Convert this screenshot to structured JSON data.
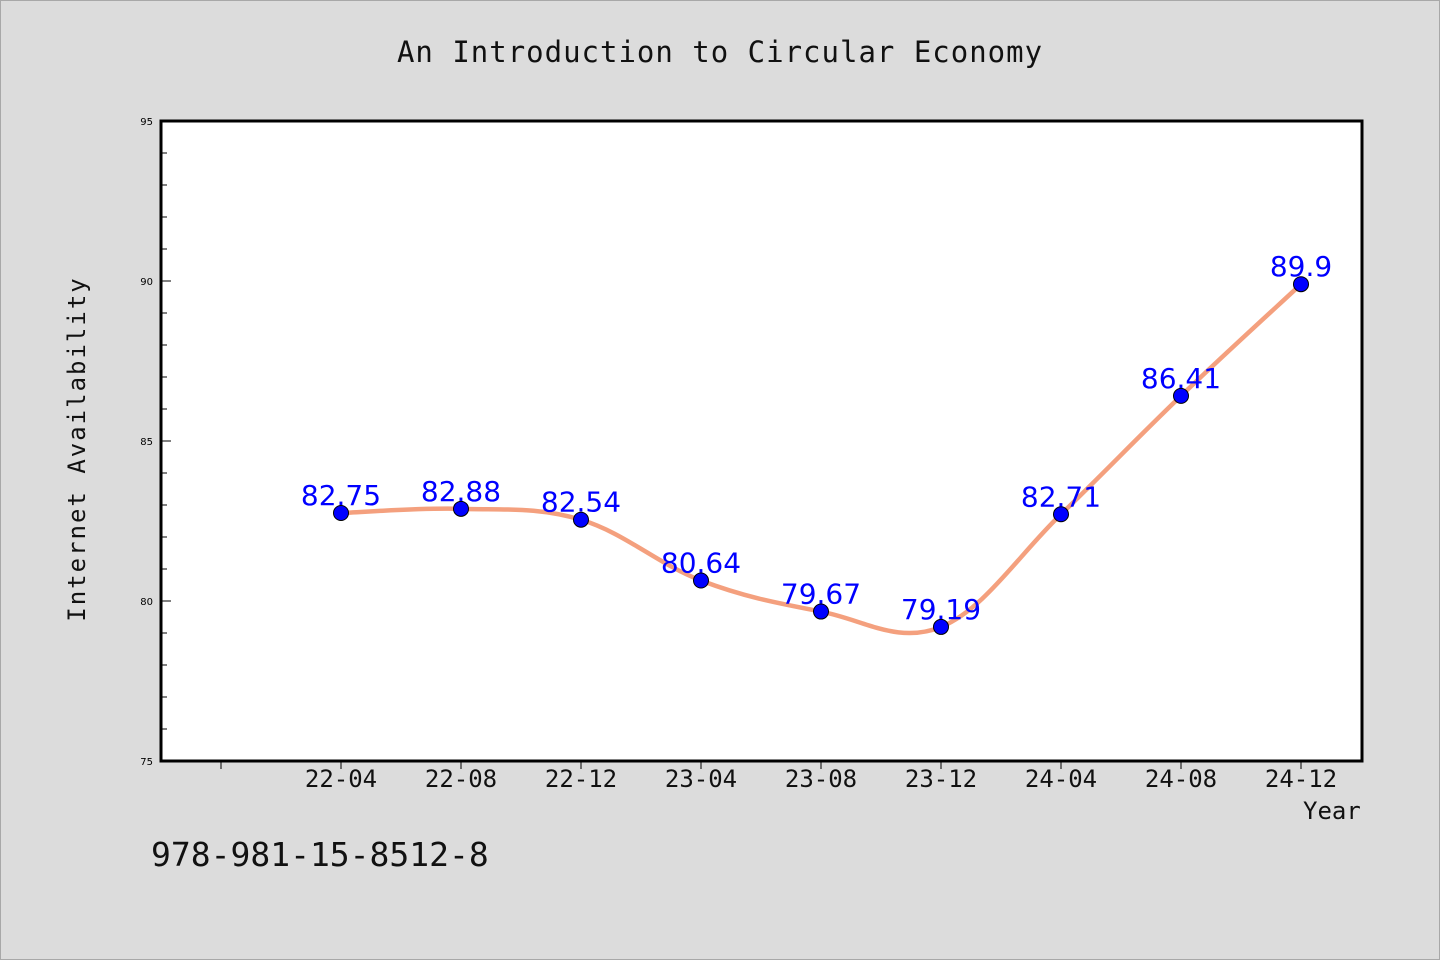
{
  "chart_data": {
    "type": "line",
    "title": "An Introduction to Circular Economy",
    "xlabel": "Year",
    "ylabel": "Internet Availability",
    "categories": [
      "22-04",
      "22-08",
      "22-12",
      "23-04",
      "23-08",
      "23-12",
      "24-04",
      "24-08",
      "24-12"
    ],
    "values": [
      82.75,
      82.88,
      82.54,
      80.64,
      79.67,
      79.19,
      82.71,
      86.41,
      89.9
    ],
    "data_labels": [
      "82.75",
      "82.88",
      "82.54",
      "80.64",
      "79.67",
      "79.19",
      "82.71",
      "86.41",
      "89.9"
    ],
    "ylim": [
      75,
      95
    ],
    "yticks": [
      75,
      80,
      85,
      90,
      95
    ],
    "grid": false,
    "line_color": "#f4a07e",
    "marker_color": "#0000ff",
    "label_color": "#0000ff"
  },
  "footer": {
    "isbn": "978-981-15-8512-8"
  }
}
